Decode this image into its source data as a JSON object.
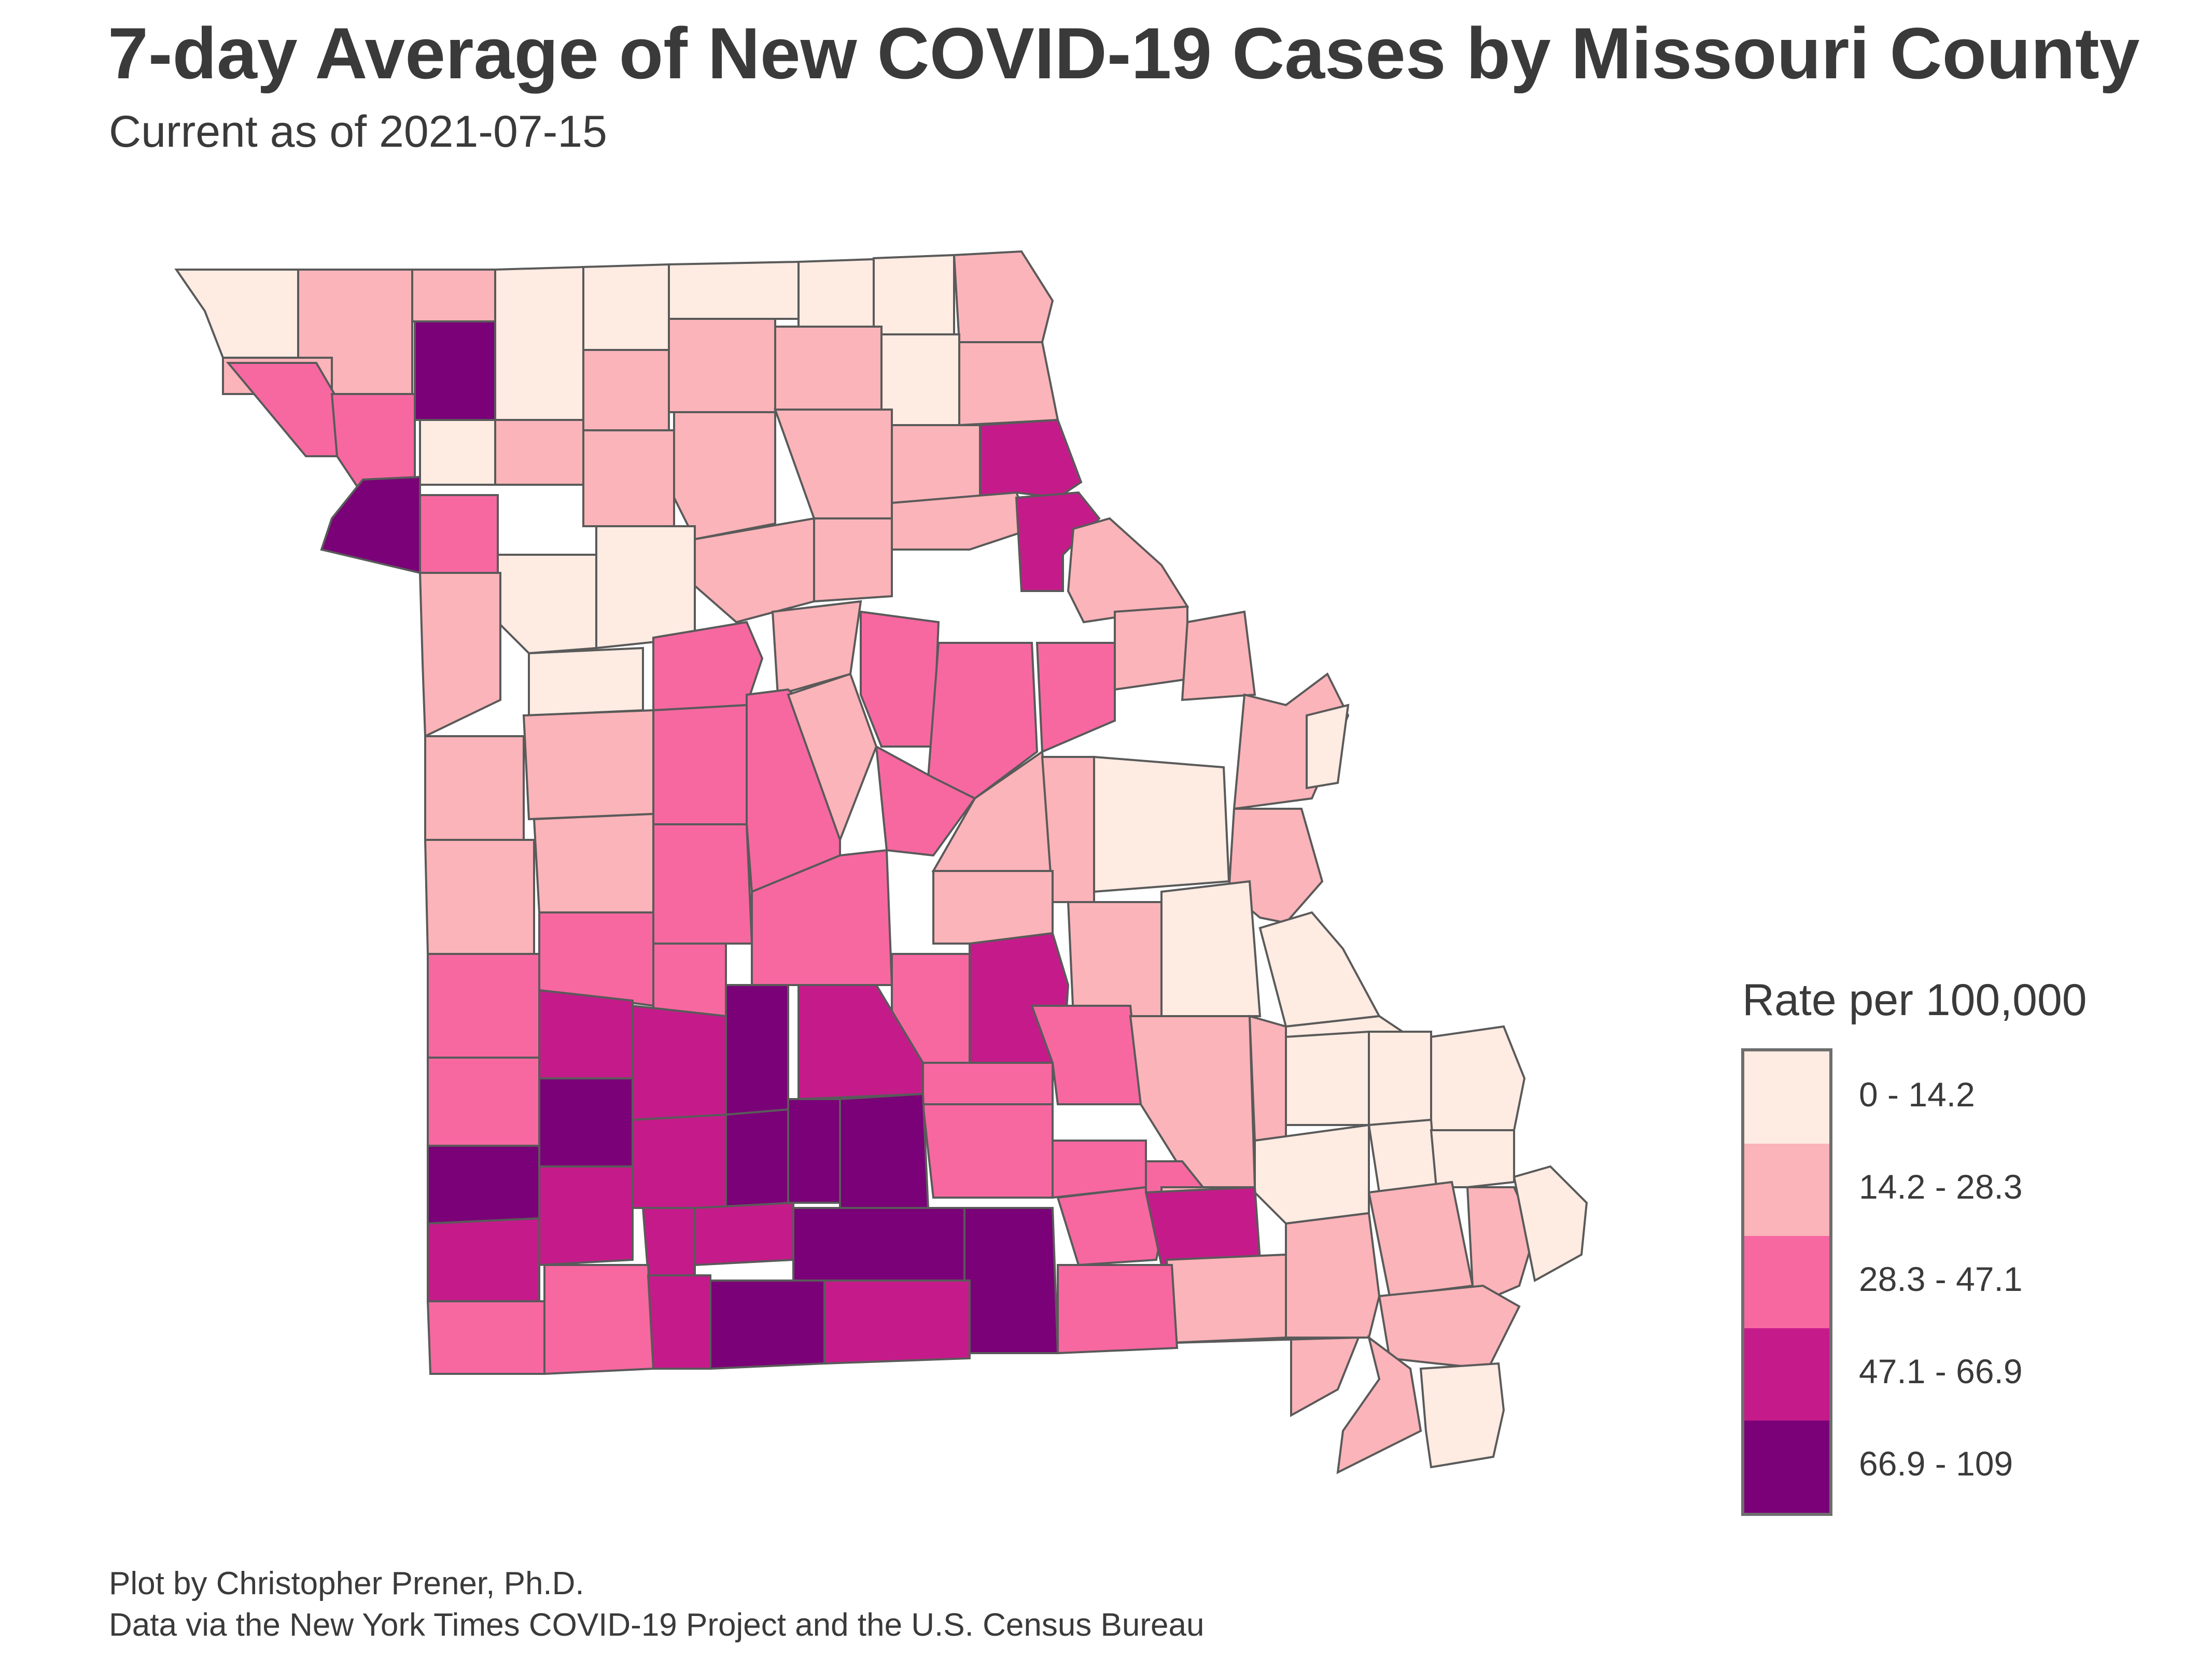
{
  "header": {
    "title": "7-day Average of New COVID-19 Cases by Missouri County",
    "subtitle": "Current as of 2021-07-15"
  },
  "legend": {
    "title": "Rate per 100,000",
    "classes": [
      {
        "label": "0 - 14.2",
        "color": "#feebe2"
      },
      {
        "label": "14.2 - 28.3",
        "color": "#fbb4b9"
      },
      {
        "label": "28.3 - 47.1",
        "color": "#f768a1"
      },
      {
        "label": "47.1 - 66.9",
        "color": "#c51b8a"
      },
      {
        "label": "66.9 - 109",
        "color": "#7a0177"
      }
    ]
  },
  "caption": {
    "line1": "Plot by Christopher Prener, Ph.D.",
    "line2": "Data via the New York Times COVID-19 Project and the U.S. Census Bureau"
  }
}
